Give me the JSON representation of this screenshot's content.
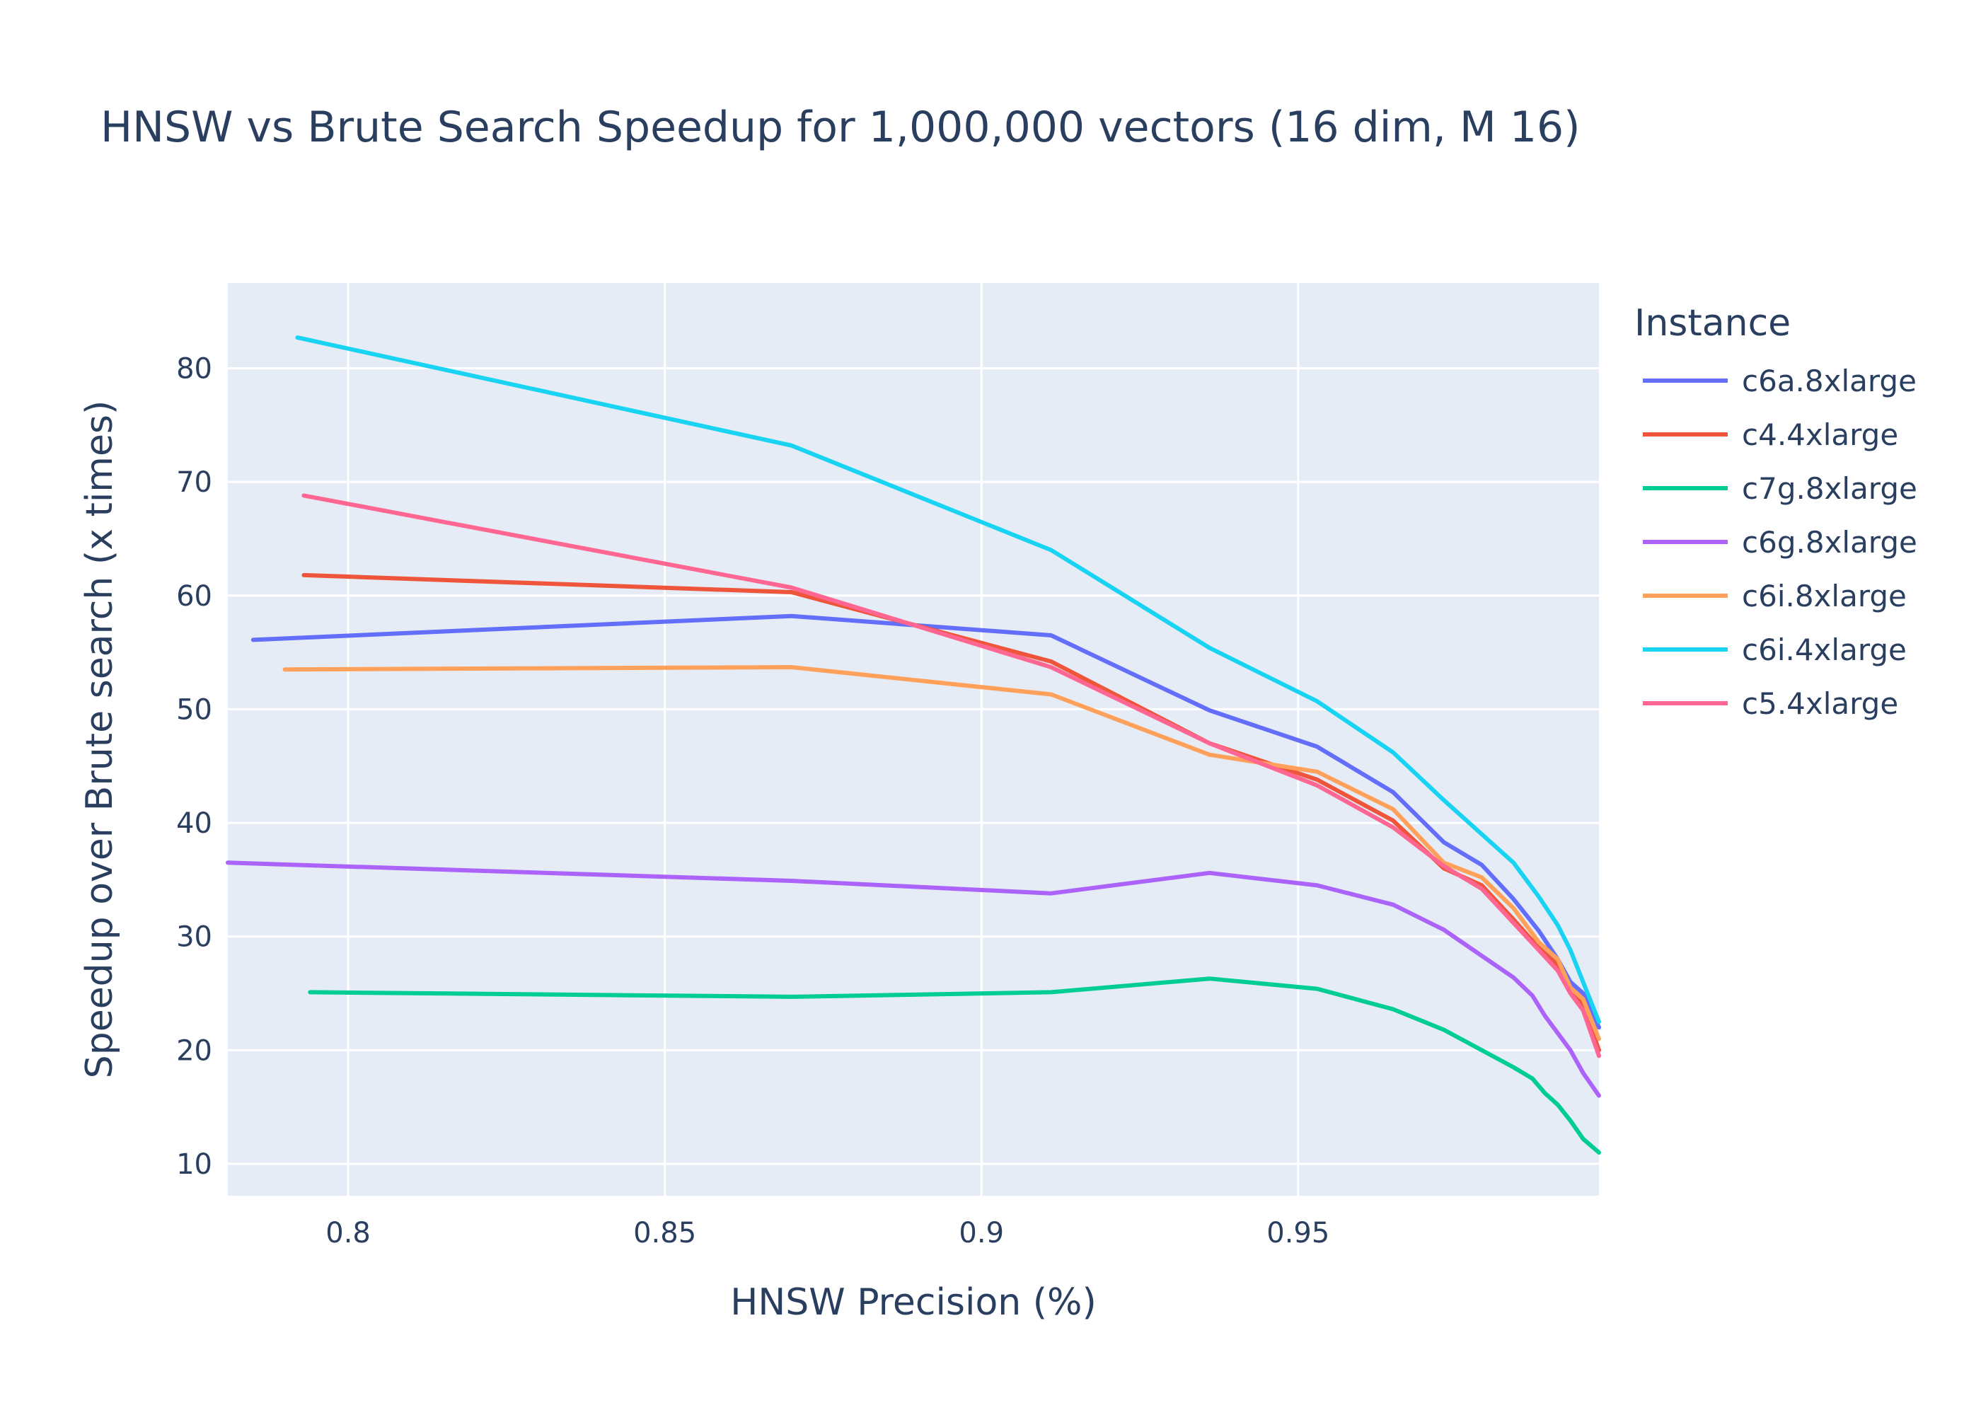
{
  "chart_data": {
    "type": "line",
    "title": "HNSW vs Brute Search Speedup for 1,000,000 vectors (16 dim, M 16)",
    "xlabel": "HNSW Precision (%)",
    "ylabel": "Speedup over Brute search (x times)",
    "xlim": [
      0.781,
      0.9975
    ],
    "ylim": [
      7.2,
      87.5
    ],
    "xticks": [
      0.8,
      0.85,
      0.9,
      0.95
    ],
    "xtick_labels": [
      "0.8",
      "0.85",
      "0.9",
      "0.95"
    ],
    "yticks": [
      10,
      20,
      30,
      40,
      50,
      60,
      70,
      80
    ],
    "ytick_labels": [
      "10",
      "20",
      "30",
      "40",
      "50",
      "60",
      "70",
      "80"
    ],
    "grid": true,
    "plot_background": "#e5ecf6",
    "legend": {
      "title": "Instance",
      "placement": "right"
    },
    "series": [
      {
        "name": "c6a.8xlarge",
        "color": "#636efa",
        "x": [
          0.785,
          0.87,
          0.911,
          0.936,
          0.953,
          0.965,
          0.973,
          0.979,
          0.984,
          0.988,
          0.991,
          0.993,
          0.995,
          0.9975
        ],
        "y": [
          56.1,
          58.2,
          56.5,
          49.9,
          46.7,
          42.7,
          38.3,
          36.3,
          33.3,
          30.5,
          28.0,
          26.0,
          25.0,
          22.0
        ]
      },
      {
        "name": "c4.4xlarge",
        "color": "#ef553b",
        "x": [
          0.793,
          0.87,
          0.911,
          0.936,
          0.953,
          0.965,
          0.973,
          0.979,
          0.984,
          0.988,
          0.991,
          0.993,
          0.995,
          0.9975
        ],
        "y": [
          61.8,
          60.3,
          54.2,
          47.0,
          43.8,
          40.2,
          36.0,
          34.5,
          31.5,
          29.0,
          27.5,
          25.0,
          24.0,
          20.0
        ]
      },
      {
        "name": "c7g.8xlarge",
        "color": "#00cc96",
        "x": [
          0.794,
          0.87,
          0.911,
          0.936,
          0.953,
          0.965,
          0.973,
          0.979,
          0.984,
          0.987,
          0.989,
          0.991,
          0.993,
          0.995,
          0.9975
        ],
        "y": [
          25.1,
          24.7,
          25.1,
          26.3,
          25.4,
          23.6,
          21.8,
          20.0,
          18.5,
          17.5,
          16.2,
          15.2,
          13.8,
          12.2,
          11.0
        ]
      },
      {
        "name": "c6g.8xlarge",
        "color": "#ab63fa",
        "x": [
          0.781,
          0.87,
          0.911,
          0.936,
          0.953,
          0.965,
          0.973,
          0.979,
          0.984,
          0.987,
          0.989,
          0.991,
          0.993,
          0.995,
          0.9975
        ],
        "y": [
          36.5,
          34.9,
          33.8,
          35.6,
          34.5,
          32.8,
          30.6,
          28.3,
          26.4,
          24.8,
          23.0,
          21.5,
          20.0,
          18.0,
          16.0
        ]
      },
      {
        "name": "c6i.8xlarge",
        "color": "#ffa15a",
        "x": [
          0.79,
          0.87,
          0.911,
          0.936,
          0.953,
          0.965,
          0.973,
          0.979,
          0.984,
          0.988,
          0.991,
          0.993,
          0.995,
          0.9975
        ],
        "y": [
          53.5,
          53.7,
          51.3,
          46.0,
          44.5,
          41.2,
          36.5,
          35.2,
          32.5,
          29.5,
          28.0,
          25.5,
          24.5,
          21.0
        ]
      },
      {
        "name": "c6i.4xlarge",
        "color": "#19d3f3",
        "x": [
          0.792,
          0.87,
          0.911,
          0.936,
          0.953,
          0.965,
          0.973,
          0.979,
          0.984,
          0.988,
          0.991,
          0.993,
          0.995,
          0.9975
        ],
        "y": [
          82.7,
          73.2,
          64.0,
          55.4,
          50.7,
          46.2,
          42.0,
          39.0,
          36.5,
          33.5,
          31.0,
          28.8,
          26.0,
          22.5
        ]
      },
      {
        "name": "c5.4xlarge",
        "color": "#ff6692",
        "x": [
          0.793,
          0.87,
          0.911,
          0.936,
          0.953,
          0.965,
          0.973,
          0.979,
          0.984,
          0.988,
          0.991,
          0.993,
          0.995,
          0.9975
        ],
        "y": [
          68.8,
          60.7,
          53.7,
          47.0,
          43.3,
          39.6,
          36.2,
          34.2,
          31.2,
          28.8,
          27.0,
          25.0,
          23.5,
          19.5
        ]
      }
    ]
  }
}
